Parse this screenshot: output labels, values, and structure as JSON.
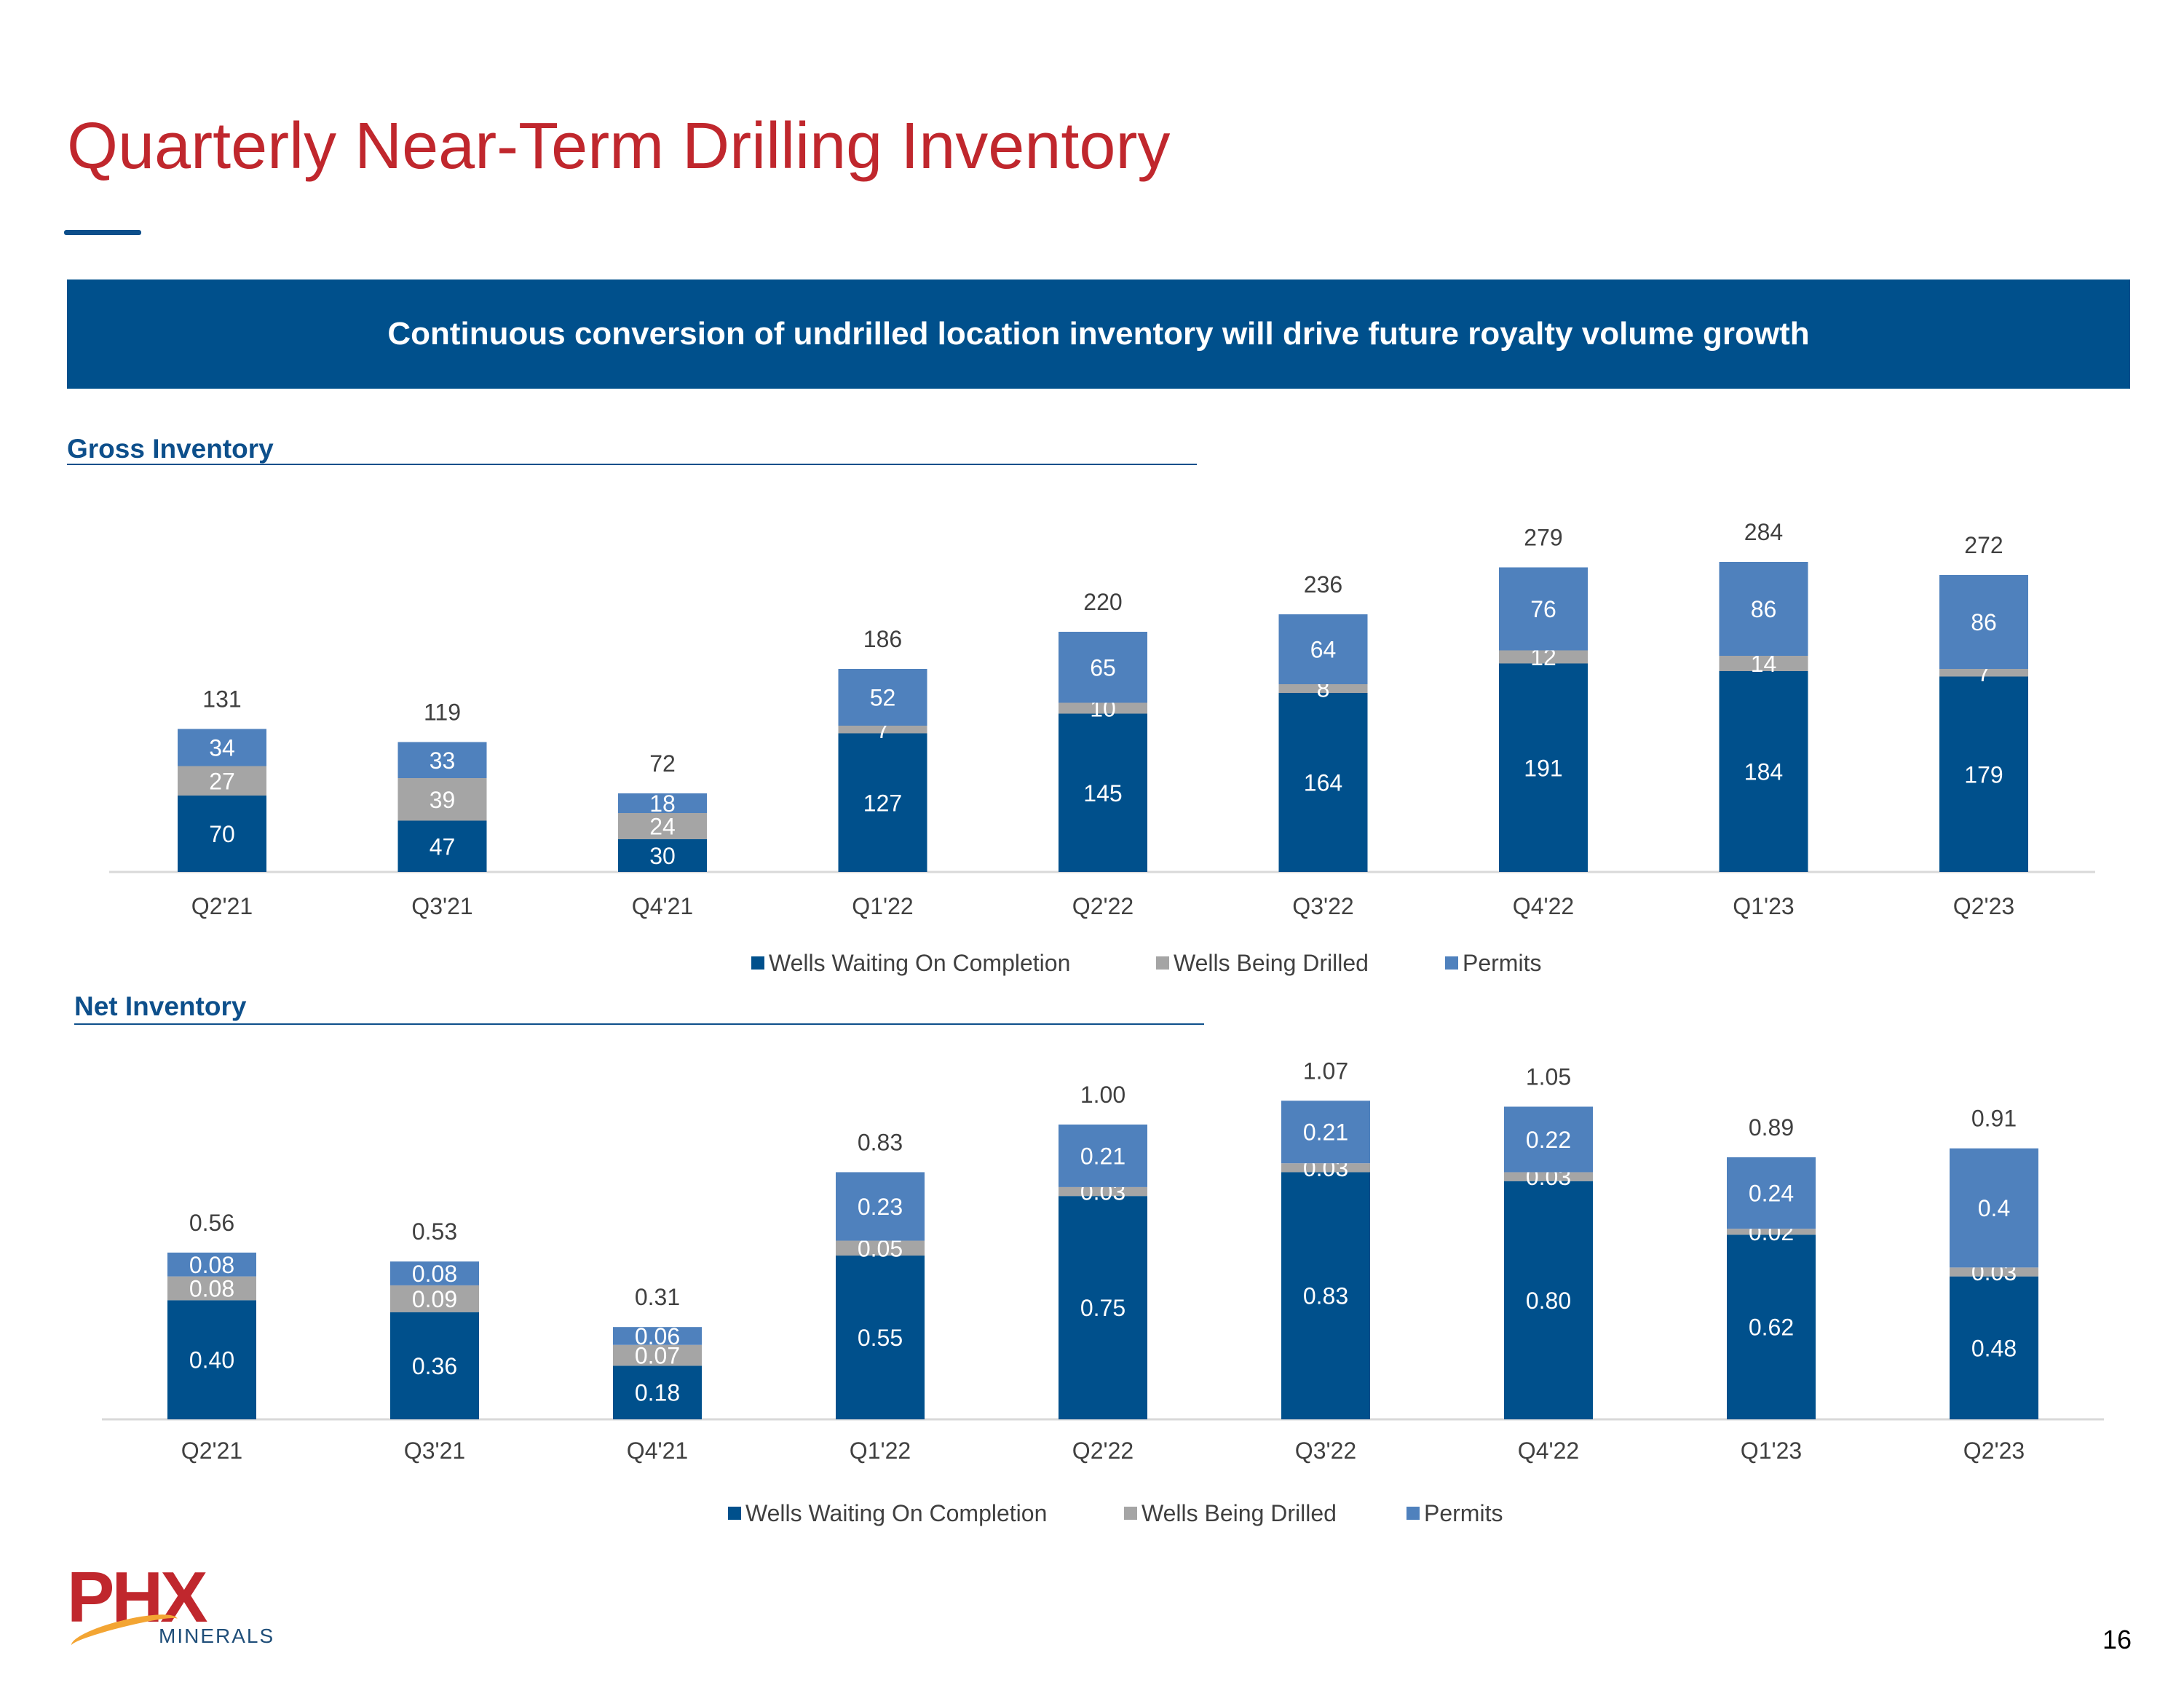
{
  "page": {
    "title": "Quarterly Near-Term Drilling Inventory",
    "banner": "Continuous conversion of undrilled location inventory will drive future royalty volume growth",
    "page_number": "16"
  },
  "logo": {
    "word": "PHX",
    "sub": "MINERALS"
  },
  "colors": {
    "waiting": "#00508c",
    "drilled": "#a5a5a5",
    "permits": "#4f81bd",
    "title": "#c0272d"
  },
  "chart_data": [
    {
      "type": "bar",
      "stacked": true,
      "title": "Gross Inventory",
      "categories": [
        "Q2'21",
        "Q3'21",
        "Q4'21",
        "Q1'22",
        "Q2'22",
        "Q3'22",
        "Q4'22",
        "Q1'23",
        "Q2'23"
      ],
      "series": [
        {
          "name": "Wells Waiting On Completion",
          "values": [
            70,
            47,
            30,
            127,
            145,
            164,
            191,
            184,
            179
          ],
          "labels": [
            "70",
            "47",
            "30",
            "127",
            "145",
            "164",
            "191",
            "184",
            "179"
          ]
        },
        {
          "name": "Wells Being Drilled",
          "values": [
            27,
            39,
            24,
            7,
            10,
            8,
            12,
            14,
            7
          ],
          "labels": [
            "27",
            "39",
            "24",
            "7",
            "10",
            "8",
            "12",
            "14",
            "7"
          ]
        },
        {
          "name": "Permits",
          "values": [
            34,
            33,
            18,
            52,
            65,
            64,
            76,
            86,
            86
          ],
          "labels": [
            "34",
            "33",
            "18",
            "52",
            "65",
            "64",
            "76",
            "86",
            "86"
          ]
        }
      ],
      "totals": [
        "131",
        "119",
        "72",
        "186",
        "220",
        "236",
        "279",
        "284",
        "272"
      ],
      "ylim": [
        0,
        300
      ],
      "legend": "bottom",
      "grid": false
    },
    {
      "type": "bar",
      "stacked": true,
      "title": "Net Inventory",
      "categories": [
        "Q2'21",
        "Q3'21",
        "Q4'21",
        "Q1'22",
        "Q2'22",
        "Q3'22",
        "Q4'22",
        "Q1'23",
        "Q2'23"
      ],
      "series": [
        {
          "name": "Wells Waiting On Completion",
          "values": [
            0.4,
            0.36,
            0.18,
            0.55,
            0.75,
            0.83,
            0.8,
            0.62,
            0.48
          ],
          "labels": [
            "0.40",
            "0.36",
            "0.18",
            "0.55",
            "0.75",
            "0.83",
            "0.80",
            "0.62",
            "0.48"
          ]
        },
        {
          "name": "Wells Being Drilled",
          "values": [
            0.08,
            0.09,
            0.07,
            0.05,
            0.03,
            0.03,
            0.03,
            0.02,
            0.03
          ],
          "labels": [
            "0.08",
            "0.09",
            "0.07",
            "0.05",
            "0.03",
            "0.03",
            "0.03",
            "0.02",
            "0.03"
          ]
        },
        {
          "name": "Permits",
          "values": [
            0.08,
            0.08,
            0.06,
            0.23,
            0.21,
            0.21,
            0.22,
            0.24,
            0.4
          ],
          "labels": [
            "0.08",
            "0.08",
            "0.06",
            "0.23",
            "0.21",
            "0.21",
            "0.22",
            "0.24",
            "0.4"
          ]
        }
      ],
      "totals": [
        "0.56",
        "0.53",
        "0.31",
        "0.83",
        "1.00",
        "1.07",
        "1.05",
        "0.89",
        "0.91"
      ],
      "ylim": [
        0,
        1.1
      ],
      "legend": "bottom",
      "grid": false
    }
  ]
}
